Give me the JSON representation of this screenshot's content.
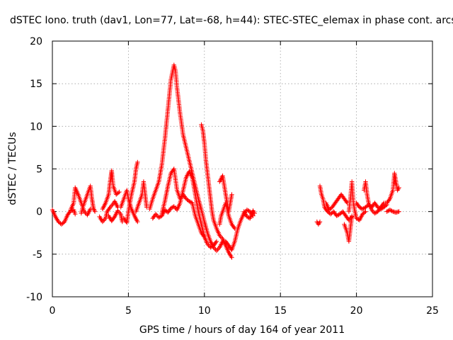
{
  "chart_data": {
    "type": "scatter",
    "title": "dSTEC Iono. truth (dav1, Lon=77, Lat=-68, h=44): STEC-STEC_elemax in phase cont. arcs",
    "xlabel": "GPS time / hours of day 164 of year 2011",
    "ylabel": "dSTEC  / TECUs",
    "xlim": [
      0,
      25
    ],
    "ylim": [
      -10,
      20
    ],
    "xticks": [
      0,
      5,
      10,
      15,
      20,
      25
    ],
    "yticks": [
      -10,
      -5,
      0,
      5,
      10,
      15,
      20
    ],
    "xtick_labels": [
      "0",
      "5",
      "10",
      "15",
      "20",
      "25"
    ],
    "ytick_labels": [
      "-10",
      "-5",
      "0",
      "5",
      "10",
      "15",
      "20"
    ],
    "grid": true,
    "marker": "+",
    "color": "#ff0000",
    "arcs": [
      [
        [
          0.0,
          0.2
        ],
        [
          0.2,
          -0.6
        ],
        [
          0.4,
          -1.2
        ],
        [
          0.6,
          -1.5
        ],
        [
          0.8,
          -1.2
        ],
        [
          1.0,
          -0.4
        ],
        [
          1.2,
          0.1
        ],
        [
          1.4,
          0.2
        ],
        [
          1.5,
          -0.3
        ]
      ],
      [
        [
          1.2,
          0.2
        ],
        [
          1.4,
          1.0
        ],
        [
          1.5,
          2.8
        ],
        [
          1.7,
          2.0
        ],
        [
          1.9,
          1.0
        ],
        [
          2.1,
          0.0
        ],
        [
          2.3,
          -0.4
        ],
        [
          2.5,
          0.3
        ]
      ],
      [
        [
          1.9,
          -0.2
        ],
        [
          2.0,
          0.5
        ],
        [
          2.2,
          1.5
        ],
        [
          2.4,
          2.5
        ],
        [
          2.5,
          3.0
        ],
        [
          2.6,
          1.5
        ],
        [
          2.7,
          0.4
        ],
        [
          2.8,
          0.0
        ]
      ],
      [
        [
          3.1,
          -0.6
        ],
        [
          3.3,
          -1.2
        ],
        [
          3.5,
          -0.8
        ],
        [
          3.6,
          0.0
        ],
        [
          3.8,
          0.5
        ],
        [
          4.0,
          0.9
        ],
        [
          4.1,
          1.2
        ],
        [
          4.3,
          0.5
        ]
      ],
      [
        [
          3.3,
          0.3
        ],
        [
          3.5,
          1.0
        ],
        [
          3.7,
          2.0
        ],
        [
          3.8,
          3.5
        ],
        [
          3.9,
          4.8
        ],
        [
          4.0,
          3.0
        ],
        [
          4.2,
          2.0
        ],
        [
          4.4,
          2.3
        ]
      ],
      [
        [
          3.7,
          -0.5
        ],
        [
          3.9,
          -1.1
        ],
        [
          4.1,
          -0.6
        ],
        [
          4.3,
          0.1
        ],
        [
          4.5,
          -0.3
        ],
        [
          4.6,
          -1.2
        ]
      ],
      [
        [
          4.5,
          0.5
        ],
        [
          4.7,
          1.5
        ],
        [
          4.9,
          2.5
        ],
        [
          5.0,
          1.5
        ],
        [
          5.2,
          0.3
        ],
        [
          5.4,
          -0.5
        ],
        [
          5.6,
          -1.2
        ]
      ],
      [
        [
          4.7,
          -0.8
        ],
        [
          4.9,
          -1.3
        ],
        [
          5.0,
          0.0
        ],
        [
          5.2,
          2.0
        ],
        [
          5.4,
          3.5
        ],
        [
          5.5,
          5.0
        ],
        [
          5.6,
          5.8
        ]
      ],
      [
        [
          5.5,
          0.0
        ],
        [
          5.7,
          1.0
        ],
        [
          5.9,
          2.0
        ],
        [
          6.0,
          3.5
        ],
        [
          6.1,
          2.0
        ],
        [
          6.2,
          0.5
        ]
      ],
      [
        [
          6.4,
          0.3
        ],
        [
          6.6,
          1.5
        ],
        [
          6.8,
          2.5
        ],
        [
          7.0,
          3.5
        ],
        [
          7.2,
          5.5
        ],
        [
          7.4,
          8.5
        ],
        [
          7.6,
          12.0
        ],
        [
          7.8,
          15.5
        ],
        [
          8.0,
          17.2
        ],
        [
          8.1,
          16.5
        ],
        [
          8.2,
          14.5
        ],
        [
          8.4,
          11.5
        ],
        [
          8.6,
          9.0
        ],
        [
          8.8,
          7.5
        ],
        [
          9.0,
          6.0
        ],
        [
          9.2,
          4.5
        ],
        [
          9.4,
          3.0
        ],
        [
          9.6,
          1.5
        ],
        [
          9.8,
          0.2
        ],
        [
          10.0,
          -1.2
        ],
        [
          10.2,
          -2.5
        ],
        [
          10.4,
          -3.5
        ],
        [
          10.6,
          -4.2
        ],
        [
          10.8,
          -4.6
        ],
        [
          11.0,
          -4.2
        ],
        [
          11.2,
          -3.5
        ]
      ],
      [
        [
          6.6,
          -0.8
        ],
        [
          6.8,
          -0.3
        ],
        [
          7.0,
          -0.7
        ],
        [
          7.2,
          -0.5
        ],
        [
          7.4,
          0.2
        ],
        [
          7.6,
          -0.1
        ],
        [
          7.8,
          0.4
        ],
        [
          8.0,
          0.6
        ],
        [
          8.2,
          0.2
        ],
        [
          8.4,
          1.0
        ],
        [
          8.6,
          2.5
        ],
        [
          8.8,
          4.0
        ],
        [
          9.0,
          4.7
        ],
        [
          9.2,
          4.0
        ],
        [
          9.4,
          2.0
        ],
        [
          9.6,
          0.0
        ],
        [
          9.8,
          -1.5
        ],
        [
          10.0,
          -3.0
        ],
        [
          10.2,
          -3.8
        ],
        [
          10.4,
          -4.2
        ],
        [
          10.6,
          -4.0
        ],
        [
          10.8,
          -3.5
        ]
      ],
      [
        [
          7.2,
          -0.2
        ],
        [
          7.4,
          1.2
        ],
        [
          7.6,
          3.0
        ],
        [
          7.8,
          4.5
        ],
        [
          8.0,
          5.0
        ],
        [
          8.2,
          2.5
        ],
        [
          8.4,
          1.5
        ],
        [
          8.6,
          2.0
        ],
        [
          8.8,
          1.5
        ],
        [
          9.0,
          1.2
        ],
        [
          9.2,
          1.0
        ],
        [
          9.4,
          -0.5
        ],
        [
          9.6,
          -1.5
        ],
        [
          9.8,
          -2.5
        ],
        [
          10.0,
          -3.0
        ]
      ],
      [
        [
          9.8,
          10.2
        ],
        [
          9.9,
          9.5
        ],
        [
          10.0,
          8.0
        ],
        [
          10.1,
          6.0
        ],
        [
          10.2,
          4.5
        ],
        [
          10.3,
          3.0
        ],
        [
          10.4,
          1.5
        ],
        [
          10.5,
          0.0
        ],
        [
          10.6,
          -1.0
        ],
        [
          10.8,
          -2.0
        ],
        [
          11.0,
          -2.8
        ],
        [
          11.2,
          -3.2
        ],
        [
          11.4,
          -4.0
        ],
        [
          11.6,
          -4.8
        ],
        [
          11.8,
          -5.4
        ]
      ],
      [
        [
          11.0,
          -1.5
        ],
        [
          11.1,
          -0.5
        ],
        [
          11.2,
          0.0
        ],
        [
          11.4,
          1.0
        ],
        [
          11.6,
          -0.5
        ],
        [
          11.8,
          -1.5
        ],
        [
          12.0,
          -2.0
        ]
      ],
      [
        [
          11.0,
          3.5
        ],
        [
          11.2,
          4.2
        ],
        [
          11.4,
          2.0
        ],
        [
          11.6,
          0.0
        ],
        [
          11.7,
          1.0
        ],
        [
          11.8,
          2.0
        ]
      ],
      [
        [
          11.4,
          -3.5
        ],
        [
          11.6,
          -4.0
        ],
        [
          11.8,
          -4.5
        ],
        [
          12.0,
          -3.5
        ],
        [
          12.2,
          -2.0
        ],
        [
          12.4,
          -1.0
        ],
        [
          12.6,
          -0.2
        ],
        [
          12.8,
          0.2
        ],
        [
          13.0,
          0.0
        ],
        [
          13.2,
          -0.5
        ]
      ],
      [
        [
          12.6,
          0.0
        ],
        [
          12.8,
          -0.6
        ],
        [
          13.0,
          -0.8
        ],
        [
          13.2,
          0.1
        ],
        [
          13.3,
          -0.2
        ]
      ],
      [
        [
          17.4,
          -1.2
        ],
        [
          17.5,
          -1.5
        ],
        [
          17.6,
          -1.2
        ]
      ],
      [
        [
          17.6,
          3.0
        ],
        [
          17.7,
          2.0
        ],
        [
          17.8,
          1.5
        ],
        [
          17.9,
          0.5
        ],
        [
          18.1,
          0.0
        ],
        [
          18.3,
          -0.3
        ],
        [
          18.5,
          0.0
        ],
        [
          18.7,
          -0.5
        ],
        [
          18.9,
          -0.3
        ],
        [
          19.1,
          0.0
        ],
        [
          19.3,
          -0.5
        ],
        [
          19.5,
          -1.0
        ],
        [
          19.7,
          -0.6
        ]
      ],
      [
        [
          18.0,
          1.0
        ],
        [
          18.2,
          0.2
        ],
        [
          18.4,
          0.5
        ],
        [
          18.6,
          1.0
        ],
        [
          18.8,
          1.5
        ],
        [
          19.0,
          2.0
        ],
        [
          19.2,
          1.5
        ],
        [
          19.4,
          1.0
        ]
      ],
      [
        [
          19.5,
          0.0
        ],
        [
          19.6,
          1.5
        ],
        [
          19.7,
          3.5
        ],
        [
          19.8,
          1.0
        ],
        [
          19.9,
          0.0
        ],
        [
          20.0,
          -0.8
        ],
        [
          20.2,
          -1.0
        ],
        [
          20.4,
          -0.3
        ],
        [
          20.6,
          0.0
        ]
      ],
      [
        [
          19.2,
          -1.5
        ],
        [
          19.4,
          -2.5
        ],
        [
          19.5,
          -3.5
        ],
        [
          19.6,
          -2.0
        ],
        [
          19.7,
          -0.5
        ]
      ],
      [
        [
          20.0,
          1.0
        ],
        [
          20.2,
          0.5
        ],
        [
          20.4,
          0.3
        ],
        [
          20.6,
          0.5
        ],
        [
          20.8,
          0.8
        ],
        [
          21.0,
          0.5
        ],
        [
          21.2,
          1.0
        ],
        [
          21.4,
          0.5
        ],
        [
          21.6,
          0.3
        ],
        [
          21.8,
          0.5
        ],
        [
          22.0,
          0.8
        ]
      ],
      [
        [
          20.5,
          2.5
        ],
        [
          20.6,
          3.5
        ],
        [
          20.7,
          2.0
        ],
        [
          20.8,
          1.0
        ],
        [
          21.0,
          0.2
        ],
        [
          21.2,
          -0.2
        ],
        [
          21.4,
          0.0
        ],
        [
          21.6,
          0.5
        ]
      ],
      [
        [
          21.6,
          0.5
        ],
        [
          21.8,
          1.0
        ],
        [
          22.0,
          1.0
        ],
        [
          22.2,
          1.5
        ],
        [
          22.4,
          2.5
        ],
        [
          22.5,
          4.5
        ],
        [
          22.6,
          3.5
        ],
        [
          22.7,
          2.5
        ],
        [
          22.8,
          2.8
        ]
      ],
      [
        [
          22.0,
          0.0
        ],
        [
          22.2,
          0.2
        ],
        [
          22.4,
          0.0
        ],
        [
          22.6,
          -0.1
        ],
        [
          22.8,
          0.0
        ]
      ]
    ]
  }
}
